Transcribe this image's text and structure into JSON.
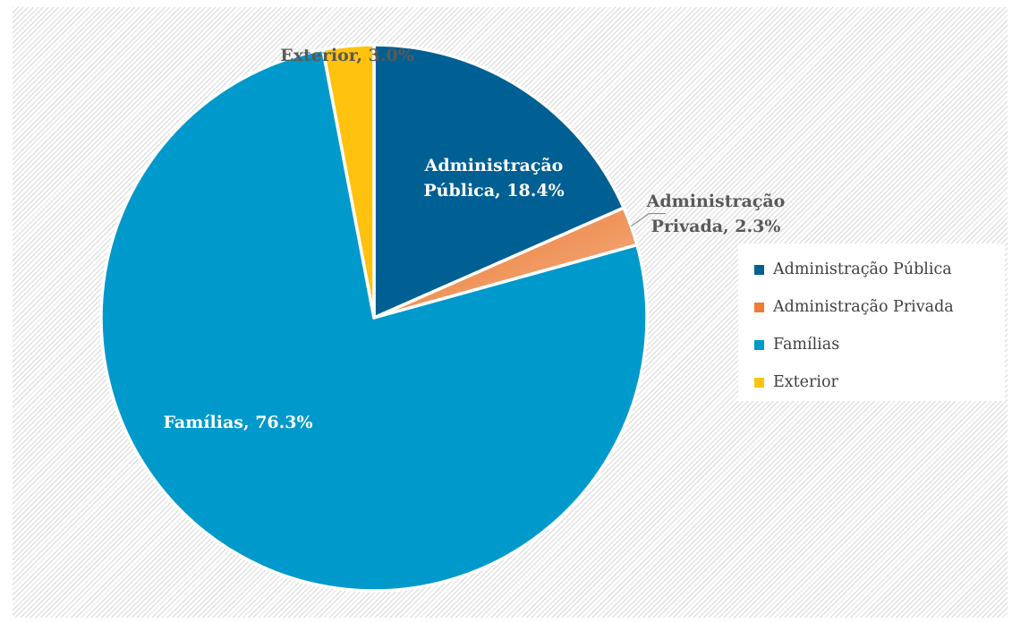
{
  "chart_data": {
    "type": "pie",
    "title": "",
    "categories": [
      "Administração Pública",
      "Administração Privada",
      "Famílias",
      "Exterior"
    ],
    "values": [
      18.4,
      2.3,
      76.3,
      3.0
    ],
    "unit": "%",
    "colors": [
      "#005f93",
      "#ed7d31",
      "#0099cc",
      "#ffc20e"
    ],
    "data_labels": [
      {
        "lines": [
          "Administração",
          "Pública, 18.4%"
        ],
        "position": "inside"
      },
      {
        "lines": [
          "Administração",
          "Privada, 2.3%"
        ],
        "position": "outside"
      },
      {
        "lines": [
          "Famílias, 76.3%"
        ],
        "position": "inside"
      },
      {
        "lines": [
          "Exterior, 3.0%"
        ],
        "position": "outside"
      }
    ],
    "legend": {
      "placement": "right",
      "entries": [
        "Administração Pública",
        "Administração Privada",
        "Famílias",
        "Exterior"
      ]
    },
    "start_angle": "12 o'clock",
    "direction": "clockwise",
    "background": "diagonal-hatch"
  }
}
